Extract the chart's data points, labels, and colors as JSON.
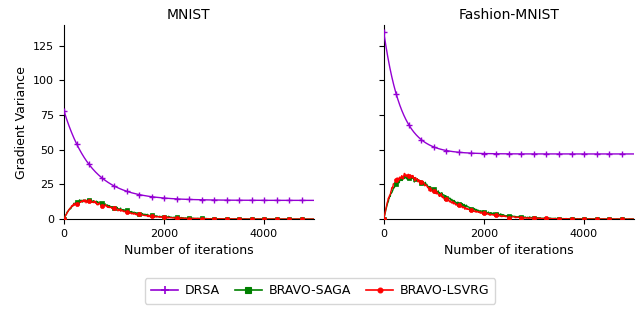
{
  "title_left": "MNIST",
  "title_right": "Fashion-MNIST",
  "ylabel": "Gradient Variance",
  "xlabel": "Number of iterations",
  "legend_labels": [
    "DRSA",
    "BRAVO-SAGA",
    "BRAVO-LSVRG"
  ],
  "drsa_color": "#9400D3",
  "saga_color": "#008000",
  "lsvrg_color": "#FF0000",
  "mnist_drsa_start": 78,
  "mnist_drsa_decay": 550,
  "mnist_drsa_floor": 13.5,
  "mnist_peak": 13.5,
  "mnist_peak_x": 430,
  "fmnist_drsa_start": 135,
  "fmnist_drsa_decay": 350,
  "fmnist_drsa_floor": 47,
  "fmnist_peak": 30,
  "fmnist_peak_x": 480,
  "ylim_left": [
    0,
    140
  ],
  "ylim_right": [
    0,
    140
  ],
  "yticks": [
    0,
    25,
    50,
    75,
    100,
    125
  ],
  "xticks": [
    0,
    2000,
    4000
  ],
  "xlim": [
    0,
    5000
  ],
  "noise_seed": 42
}
